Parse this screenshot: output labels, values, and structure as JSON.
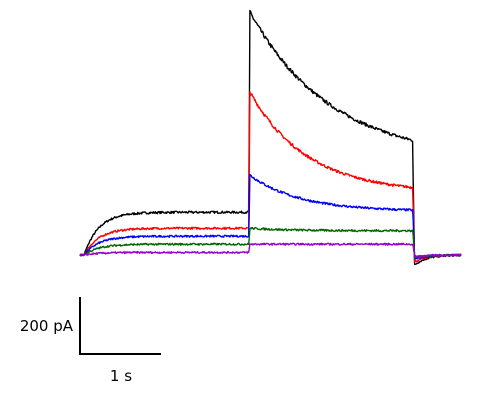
{
  "chart_data": {
    "type": "line",
    "title": "",
    "xlabel": "",
    "ylabel": "",
    "x_unit": "s",
    "y_unit": "pA",
    "xlim": [
      0,
      4.8
    ],
    "ylim": [
      -40,
      900
    ],
    "grid": false,
    "legend": "none",
    "scale_bar": {
      "y_label": "200 pA",
      "y_value": 200,
      "x_label": "1 s",
      "x_value": 1
    },
    "events": {
      "step_on": 0.05,
      "step_change": 2.06,
      "step_off": 4.06
    },
    "series": [
      {
        "color": "#000000",
        "baseline": 0,
        "phase1_plateau": 150,
        "phase2_peak": 858,
        "phase2_end": 331,
        "phase2_tau": 1.0,
        "tail": -35
      },
      {
        "color": "#ff0000",
        "baseline": 0,
        "phase1_plateau": 94,
        "phase2_peak": 578,
        "phase2_end": 216,
        "phase2_tau": 0.7,
        "tail": -25
      },
      {
        "color": "#0000ff",
        "baseline": 0,
        "phase1_plateau": 66,
        "phase2_peak": 283,
        "phase2_end": 153,
        "phase2_tau": 0.6,
        "tail": -15
      },
      {
        "color": "#006600",
        "baseline": 0,
        "phase1_plateau": 38,
        "phase2_peak": 94,
        "phase2_end": 85,
        "phase2_tau": 0.5,
        "tail": -10
      },
      {
        "color": "#9900cc",
        "baseline": 0,
        "phase1_plateau": 9,
        "phase2_peak": 38,
        "phase2_end": 38,
        "phase2_tau": 0.5,
        "tail": -5
      }
    ]
  }
}
